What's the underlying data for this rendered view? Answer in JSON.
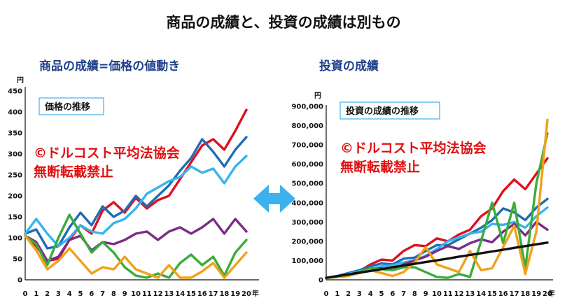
{
  "title": "商品の成績と、投資の成績は別もの",
  "left_subtitle": "商品の成績=価格の値動き",
  "right_subtitle": "投資の成績",
  "left_box_label": "価格の推移",
  "right_box_label": "投資の成績の推移",
  "watermark_line1": "©ドルコスト平均法協会",
  "watermark_line2": "無断転載禁止",
  "left_unit": "円",
  "right_unit": "円",
  "x_unit": "年",
  "colors": {
    "red": "#e0101e",
    "blue": "#1f6cb4",
    "light_blue": "#38b4ec",
    "purple": "#7a2c86",
    "green": "#3aac3a",
    "orange": "#f2a11c",
    "black": "#111111",
    "arrow": "#3cb1ee",
    "subtitle": "#1f3f8a"
  },
  "chart_data": [
    {
      "type": "line",
      "x": [
        0,
        1,
        2,
        3,
        4,
        5,
        6,
        7,
        8,
        9,
        10,
        11,
        12,
        13,
        14,
        15,
        16,
        17,
        18,
        19,
        20
      ],
      "ylim": [
        0,
        450
      ],
      "yticks": [
        0,
        50,
        100,
        150,
        200,
        250,
        300,
        350,
        400,
        450
      ],
      "series": [
        {
          "color": "red",
          "values": [
            105,
            80,
            45,
            50,
            95,
            130,
            110,
            165,
            185,
            160,
            195,
            170,
            190,
            200,
            240,
            280,
            320,
            335,
            310,
            355,
            405
          ]
        },
        {
          "color": "blue",
          "values": [
            110,
            120,
            75,
            80,
            125,
            160,
            130,
            175,
            150,
            165,
            200,
            175,
            200,
            225,
            260,
            290,
            335,
            305,
            270,
            310,
            340
          ]
        },
        {
          "color": "light_blue",
          "values": [
            110,
            145,
            110,
            80,
            100,
            130,
            115,
            110,
            135,
            145,
            170,
            205,
            220,
            235,
            245,
            270,
            255,
            265,
            230,
            270,
            295
          ]
        },
        {
          "color": "purple",
          "values": [
            105,
            90,
            45,
            55,
            95,
            105,
            70,
            90,
            85,
            95,
            110,
            115,
            95,
            115,
            125,
            110,
            125,
            145,
            110,
            145,
            115
          ]
        },
        {
          "color": "green",
          "values": [
            105,
            85,
            35,
            100,
            155,
            110,
            65,
            90,
            65,
            30,
            10,
            5,
            15,
            5,
            40,
            60,
            35,
            55,
            10,
            65,
            95
          ]
        },
        {
          "color": "orange",
          "values": [
            105,
            70,
            25,
            45,
            75,
            45,
            15,
            30,
            25,
            55,
            25,
            15,
            5,
            35,
            5,
            5,
            20,
            40,
            5,
            35,
            65
          ]
        }
      ]
    },
    {
      "type": "line",
      "x": [
        0,
        1,
        2,
        3,
        4,
        5,
        6,
        7,
        8,
        9,
        10,
        11,
        12,
        13,
        14,
        15,
        16,
        17,
        18,
        19,
        20
      ],
      "ylim": [
        0,
        900000
      ],
      "yticks": [
        0,
        100000,
        200000,
        300000,
        400000,
        500000,
        600000,
        700000,
        800000,
        900000
      ],
      "ytick_labels": [
        "0",
        "100,000",
        "200,000",
        "300,000",
        "400,000",
        "500,000",
        "600,000",
        "700,000",
        "800,000",
        "900,000"
      ],
      "series": [
        {
          "color": "red",
          "values": [
            10000,
            15000,
            30000,
            45000,
            80000,
            105000,
            100000,
            150000,
            180000,
            175000,
            215000,
            200000,
            235000,
            260000,
            330000,
            370000,
            460000,
            520000,
            470000,
            550000,
            630000
          ]
        },
        {
          "color": "blue",
          "values": [
            10000,
            20000,
            35000,
            50000,
            70000,
            85000,
            80000,
            110000,
            115000,
            150000,
            180000,
            180000,
            210000,
            240000,
            270000,
            310000,
            370000,
            350000,
            310000,
            375000,
            420000
          ]
        },
        {
          "color": "light_blue",
          "values": [
            10000,
            15000,
            30000,
            45000,
            55000,
            70000,
            75000,
            90000,
            100000,
            125000,
            160000,
            200000,
            220000,
            240000,
            250000,
            290000,
            285000,
            300000,
            270000,
            330000,
            375000
          ]
        },
        {
          "color": "purple",
          "values": [
            10000,
            15000,
            25000,
            40000,
            55000,
            60000,
            50000,
            80000,
            100000,
            120000,
            150000,
            175000,
            160000,
            190000,
            210000,
            195000,
            250000,
            290000,
            230000,
            300000,
            260000
          ]
        },
        {
          "color": "green",
          "values": [
            10000,
            15000,
            20000,
            40000,
            60000,
            55000,
            50000,
            65000,
            65000,
            40000,
            15000,
            10000,
            30000,
            15000,
            200000,
            400000,
            190000,
            400000,
            60000,
            500000,
            760000
          ]
        },
        {
          "color": "orange",
          "values": [
            10000,
            15000,
            20000,
            35000,
            50000,
            35000,
            20000,
            40000,
            90000,
            170000,
            80000,
            60000,
            40000,
            150000,
            50000,
            60000,
            170000,
            280000,
            30000,
            250000,
            830000
          ]
        },
        {
          "color": "black",
          "values": [
            10000,
            19000,
            28000,
            37000,
            46000,
            55000,
            65000,
            74000,
            83000,
            92000,
            101000,
            110000,
            120000,
            129000,
            138000,
            147000,
            156000,
            166000,
            175000,
            184000,
            193000
          ]
        }
      ]
    }
  ]
}
